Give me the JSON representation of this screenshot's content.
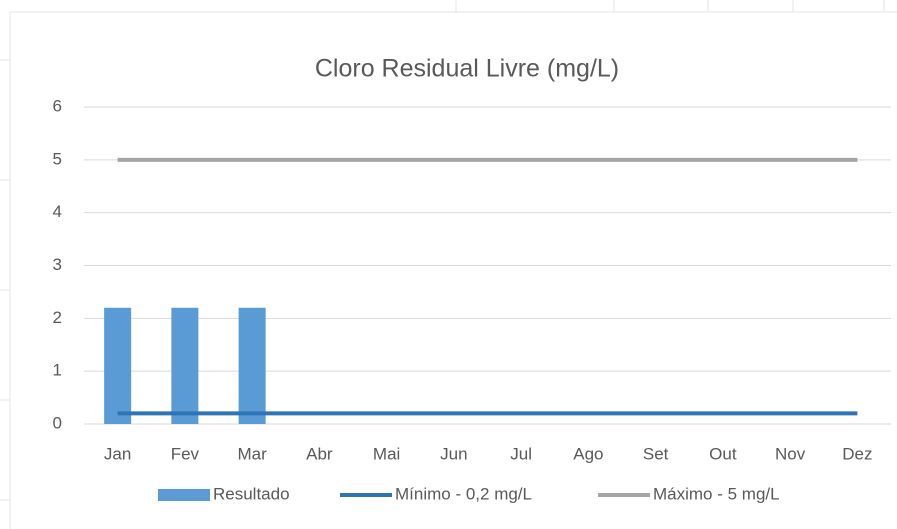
{
  "chart_data": {
    "type": "bar",
    "title": "Cloro Residual Livre (mg/L)",
    "categories": [
      "Jan",
      "Fev",
      "Mar",
      "Abr",
      "Mai",
      "Jun",
      "Jul",
      "Ago",
      "Set",
      "Out",
      "Nov",
      "Dez"
    ],
    "series": [
      {
        "name": "Resultado",
        "type": "bar",
        "color": "#5b9bd5",
        "values": [
          2.2,
          2.2,
          2.2,
          null,
          null,
          null,
          null,
          null,
          null,
          null,
          null,
          null
        ]
      },
      {
        "name": "Mínimo - 0,2 mg/L",
        "type": "line",
        "color": "#2e75b6",
        "values": [
          0.2,
          0.2,
          0.2,
          0.2,
          0.2,
          0.2,
          0.2,
          0.2,
          0.2,
          0.2,
          0.2,
          0.2
        ]
      },
      {
        "name": "Máximo - 5 mg/L",
        "type": "line",
        "color": "#a5a5a5",
        "values": [
          5,
          5,
          5,
          5,
          5,
          5,
          5,
          5,
          5,
          5,
          5,
          5
        ]
      }
    ],
    "ylim": [
      0,
      6
    ],
    "yticks": [
      0,
      1,
      2,
      3,
      4,
      5,
      6
    ],
    "grid": true,
    "legend": "bottom"
  }
}
